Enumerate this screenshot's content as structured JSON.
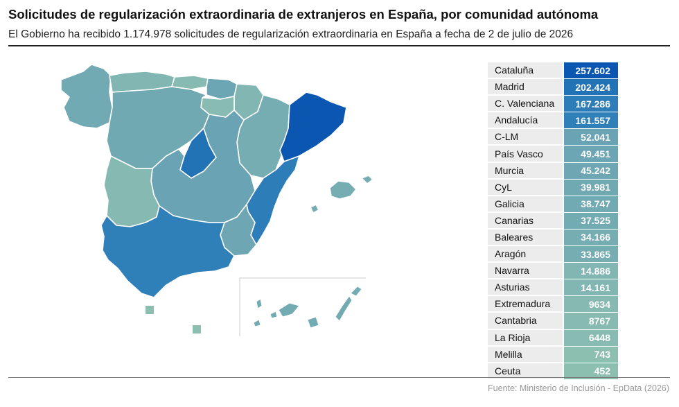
{
  "header": {
    "title": "Solicitudes de regularización extraordinaria de extranjeros en España, por comunidad autónoma",
    "subtitle": "El Gobierno ha recibido 1.174.978 solicitudes de regularización extraordinaria en España a fecha de 2 de julio de 2026"
  },
  "footer": {
    "source": "Fuente: Ministerio de Inclusión - EpData (2026)"
  },
  "colors": {
    "darkest": "#0a56b0",
    "dark": "#2f7fb8",
    "mid": "#6ea8b0",
    "light": "#8dbfb0",
    "border": "#ffffff"
  },
  "table": {
    "rows": [
      {
        "name": "Cataluña",
        "value": "257.602",
        "color": "#0a56b0"
      },
      {
        "name": "Madrid",
        "value": "202.424",
        "color": "#2272b6"
      },
      {
        "name": "C. Valenciana",
        "value": "167.286",
        "color": "#2d7db8"
      },
      {
        "name": "Andalucía",
        "value": "161.557",
        "color": "#2f7fb8"
      },
      {
        "name": "C-LM",
        "value": "52.041",
        "color": "#6aa3b3"
      },
      {
        "name": "País Vasco",
        "value": "49.451",
        "color": "#6ca5b3"
      },
      {
        "name": "Murcia",
        "value": "45.242",
        "color": "#6ea7b3"
      },
      {
        "name": "CyL",
        "value": "39.981",
        "color": "#71a9b3"
      },
      {
        "name": "Galicia",
        "value": "38.747",
        "color": "#72aab3"
      },
      {
        "name": "Canarias",
        "value": "37.525",
        "color": "#73abb3"
      },
      {
        "name": "Baleares",
        "value": "34.166",
        "color": "#75adb3"
      },
      {
        "name": "Aragón",
        "value": "33.865",
        "color": "#75adb3"
      },
      {
        "name": "Navarra",
        "value": "14.886",
        "color": "#82b6b2"
      },
      {
        "name": "Asturias",
        "value": "14.161",
        "color": "#82b6b2"
      },
      {
        "name": "Extremadura",
        "value": "9634",
        "color": "#86b9b1"
      },
      {
        "name": "Cantabria",
        "value": "8767",
        "color": "#87bab1"
      },
      {
        "name": "La Rioja",
        "value": "6448",
        "color": "#88bbb1"
      },
      {
        "name": "Melilla",
        "value": "743",
        "color": "#8dbfb0"
      },
      {
        "name": "Ceuta",
        "value": "452",
        "color": "#8dbfb0"
      }
    ]
  }
}
